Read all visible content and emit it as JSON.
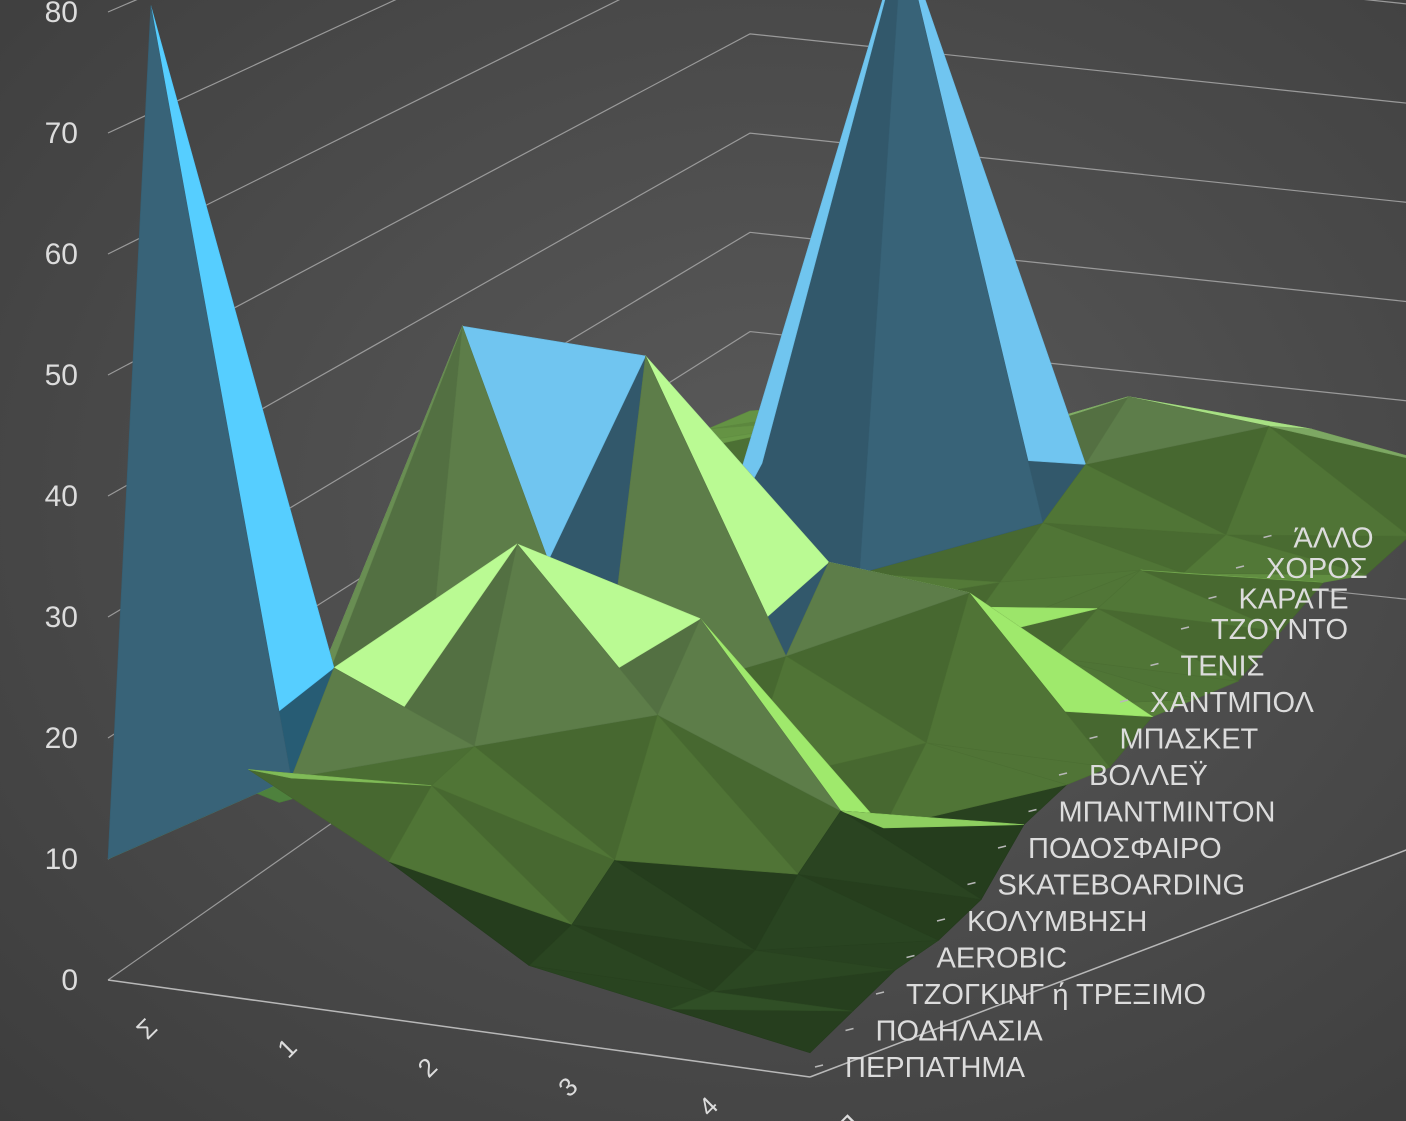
{
  "chart_data": {
    "type": "surface",
    "title": "",
    "x_categories": [
      "Σ",
      "1",
      "2",
      "3",
      "4",
      "Π"
    ],
    "z_categories": [
      "ΠΕΡΠΑΤΗΜΑ",
      "ΠΟΔΗΛΑΣΙΑ",
      "ΤΖΟΓΚΙΝΓ ή ΤΡΕΞΙΜΟ",
      "AEROBIC",
      "ΚΟΛΥΜΒΗΣΗ",
      "SKATEBOARDING",
      "ΠΟΔΟΣΦΑΙΡΟ",
      "ΜΠΑΝΤΜΙΝΤΟΝ",
      "ΒΟΛΛΕΫ",
      "ΜΠΑΣΚΕΤ",
      "ΧΑΝΤΜΠΟΛ",
      "ΤΕΝΙΣ",
      "ΤΖΟΥΝΤΟ",
      "ΚΑΡΑΤΕ",
      "ΧΟΡΟΣ",
      "ΆΛΛΟ"
    ],
    "y_ticks": [
      0,
      10,
      20,
      30,
      40,
      50,
      60,
      70,
      80
    ],
    "ylim": [
      0,
      80
    ],
    "values": [
      [
        10,
        19,
        13,
        6,
        4,
        2
      ],
      [
        79,
        16,
        17,
        7,
        3,
        3
      ],
      [
        12,
        23,
        18,
        10,
        4,
        4
      ],
      [
        9,
        14,
        33,
        20,
        8,
        4
      ],
      [
        5,
        10,
        17,
        26,
        11,
        5
      ],
      [
        14,
        46,
        14,
        9,
        7,
        9
      ],
      [
        10,
        15,
        43,
        18,
        12,
        10
      ],
      [
        9,
        12,
        11,
        24,
        23,
        9
      ],
      [
        13,
        11,
        10,
        9,
        10,
        11
      ],
      [
        11,
        10,
        12,
        15,
        12,
        10
      ],
      [
        12,
        9,
        10,
        9,
        14,
        9
      ],
      [
        14,
        12,
        11,
        12,
        15,
        11
      ],
      [
        15,
        17,
        70,
        15,
        12,
        13
      ],
      [
        14,
        18,
        17,
        18,
        13,
        11
      ],
      [
        13,
        16,
        16,
        22,
        21,
        12
      ],
      [
        12,
        15,
        15,
        17,
        18,
        16
      ]
    ],
    "band_colors": [
      "#4a7a3a",
      "#8ed060",
      "#a6df83",
      "#64b0d6",
      "#4db8e8",
      "#f2a035",
      "#3f9a2c",
      "#98d27a",
      "#2f94c8"
    ],
    "grid": true,
    "legend": "none"
  }
}
